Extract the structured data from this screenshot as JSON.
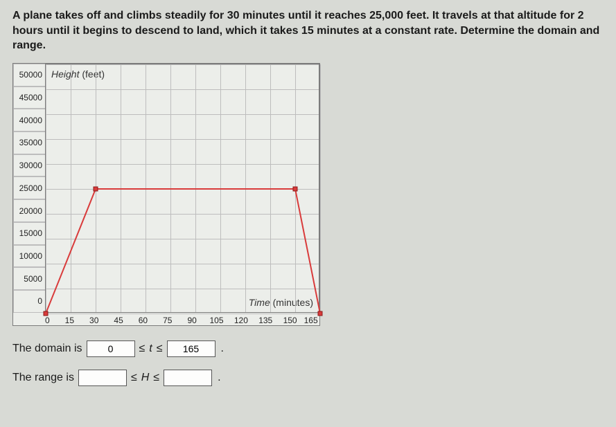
{
  "question_text": "A plane takes off and climbs steadily for 30 minutes until it reaches 25,000 feet. It travels at that altitude for 2 hours until it begins to descend to land, which it takes 15 minutes at a constant rate. Determine the domain and range.",
  "chart": {
    "type": "line",
    "y_title_italic": "Height",
    "y_title_unit": "(feet)",
    "x_title_italic": "Time",
    "x_title_unit": "(minutes)",
    "y_ticks": [
      "50000",
      "45000",
      "40000",
      "35000",
      "30000",
      "25000",
      "20000",
      "15000",
      "10000",
      "5000",
      "0"
    ],
    "x_ticks": [
      "0",
      "15",
      "30",
      "45",
      "60",
      "75",
      "90",
      "105",
      "120",
      "135",
      "150",
      "165"
    ],
    "xlim": [
      0,
      165
    ],
    "ylim": [
      0,
      50000
    ],
    "background_color": "#eceeea",
    "grid_color": "#bdbdbd",
    "line_color": "#d93b3b",
    "line_width": 2,
    "marker_color": "#d93b3b",
    "marker_size": 6,
    "series": [
      {
        "x": 0,
        "y": 0,
        "marker": true
      },
      {
        "x": 30,
        "y": 25000,
        "marker": true
      },
      {
        "x": 150,
        "y": 25000,
        "marker": true
      },
      {
        "x": 165,
        "y": 0,
        "marker": true
      }
    ]
  },
  "answers": {
    "domain_label": "The domain is",
    "domain_low": "0",
    "domain_var": "t",
    "domain_high": "165",
    "range_label": "The range is",
    "range_low": "",
    "range_var": "H",
    "range_high": "",
    "lte": "≤"
  }
}
